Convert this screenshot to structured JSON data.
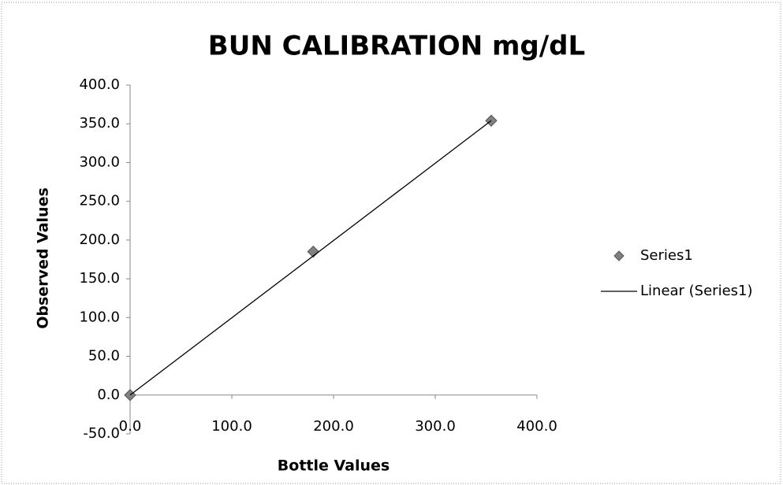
{
  "chart_data": {
    "type": "scatter",
    "title": "BUN CALIBRATION  mg/dL",
    "xlabel": "Bottle Values",
    "ylabel": "Observed Values",
    "xlim": [
      0,
      400
    ],
    "ylim": [
      -50,
      400
    ],
    "xticks": [
      {
        "value": 0,
        "label": "0.0"
      },
      {
        "value": 100,
        "label": "100.0"
      },
      {
        "value": 200,
        "label": "200.0"
      },
      {
        "value": 300,
        "label": "300.0"
      },
      {
        "value": 400,
        "label": "400.0"
      }
    ],
    "yticks": [
      {
        "value": -50,
        "label": "-50.0"
      },
      {
        "value": 0,
        "label": "0.0"
      },
      {
        "value": 50,
        "label": "50.0"
      },
      {
        "value": 100,
        "label": "100.0"
      },
      {
        "value": 150,
        "label": "150.0"
      },
      {
        "value": 200,
        "label": "200.0"
      },
      {
        "value": 250,
        "label": "250.0"
      },
      {
        "value": 300,
        "label": "300.0"
      },
      {
        "value": 350,
        "label": "350.0"
      },
      {
        "value": 400,
        "label": "400.0"
      }
    ],
    "legend": "right",
    "series": [
      {
        "name": "Series1",
        "type": "scatter",
        "color": "#808080",
        "x": [
          0,
          180,
          355
        ],
        "values": [
          0,
          185,
          354
        ]
      },
      {
        "name": "Linear (Series1)",
        "type": "line",
        "color": "#000000",
        "x": [
          0,
          355
        ],
        "values": [
          0,
          354
        ]
      }
    ]
  }
}
